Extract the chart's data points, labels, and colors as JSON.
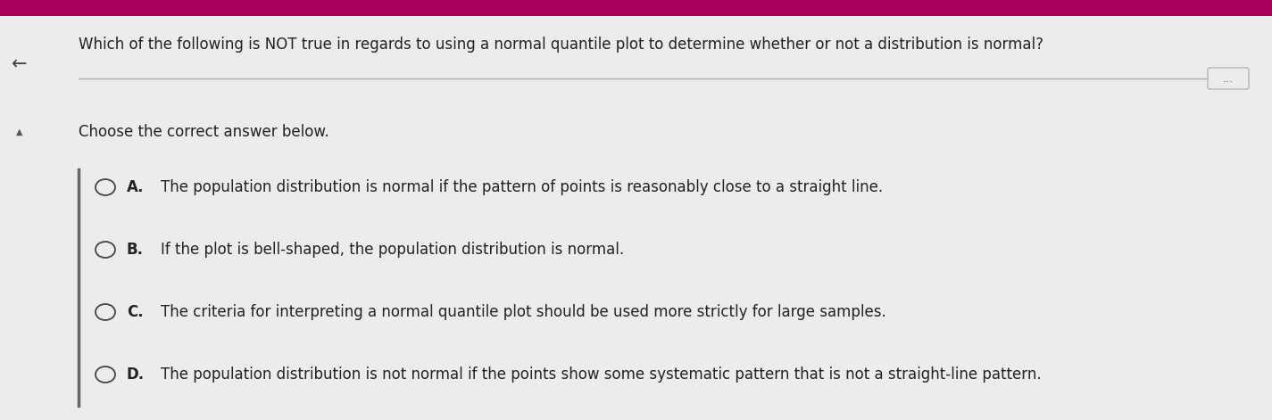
{
  "main_bg_color": "#edecea",
  "top_bar_color": "#a8005a",
  "question": "Which of the following is NOT true in regards to using a normal quantile plot to determine whether or not a distribution is normal?",
  "instruction": "Choose the correct answer below.",
  "options": [
    {
      "label": "A.",
      "text": "The population distribution is normal if the pattern of points is reasonably close to a straight line."
    },
    {
      "label": "B.",
      "text": "If the plot is bell-shaped, the population distribution is normal."
    },
    {
      "label": "C.",
      "text": "The criteria for interpreting a normal quantile plot should be used more strictly for large samples."
    },
    {
      "label": "D.",
      "text": "The population distribution is not normal if the points show some systematic pattern that is not a straight-line pattern."
    }
  ],
  "question_fontsize": 12,
  "instruction_fontsize": 12,
  "option_fontsize": 12,
  "text_color": "#222222",
  "left_arrow": "←",
  "up_arrow": "▲"
}
